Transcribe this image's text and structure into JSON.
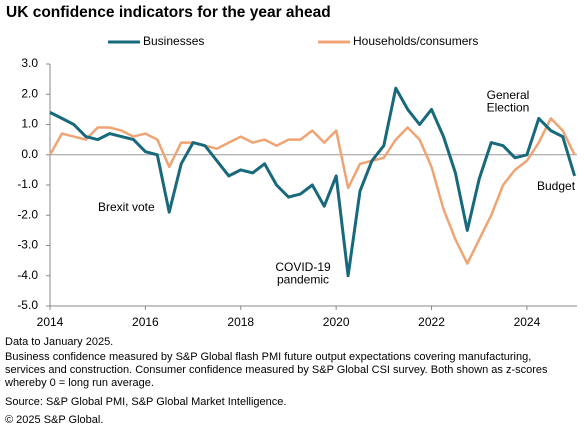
{
  "chart_data": {
    "type": "line",
    "title": "UK confidence indicators for the year ahead",
    "x": [
      2014,
      2014.25,
      2014.5,
      2014.75,
      2015,
      2015.25,
      2015.5,
      2015.75,
      2016,
      2016.25,
      2016.5,
      2016.75,
      2017,
      2017.25,
      2017.5,
      2017.75,
      2018,
      2018.25,
      2018.5,
      2018.75,
      2019,
      2019.25,
      2019.5,
      2019.75,
      2020,
      2020.25,
      2020.5,
      2020.75,
      2021,
      2021.25,
      2021.5,
      2021.75,
      2022,
      2022.25,
      2022.5,
      2022.75,
      2023,
      2023.25,
      2023.5,
      2023.75,
      2024,
      2024.25,
      2024.5,
      2024.75,
      2025
    ],
    "series": [
      {
        "name": "Businesses",
        "color": "#17697b",
        "values": [
          1.4,
          1.2,
          1.0,
          0.6,
          0.5,
          0.7,
          0.6,
          0.5,
          0.1,
          0.0,
          -1.9,
          -0.3,
          0.4,
          0.3,
          -0.2,
          -0.7,
          -0.5,
          -0.6,
          -0.3,
          -1.0,
          -1.4,
          -1.3,
          -1.0,
          -1.7,
          -0.7,
          -4.0,
          -1.2,
          -0.2,
          0.3,
          2.2,
          1.5,
          1.0,
          1.5,
          0.6,
          -0.6,
          -2.5,
          -0.8,
          0.4,
          0.3,
          -0.1,
          0.0,
          1.2,
          0.8,
          0.6,
          -0.7
        ]
      },
      {
        "name": "Households/consumers",
        "color": "#f0a474",
        "values": [
          0.0,
          0.7,
          0.6,
          0.5,
          0.9,
          0.9,
          0.8,
          0.6,
          0.7,
          0.5,
          -0.4,
          0.4,
          0.4,
          0.3,
          0.2,
          0.4,
          0.6,
          0.4,
          0.5,
          0.3,
          0.5,
          0.5,
          0.8,
          0.4,
          0.8,
          -1.1,
          -0.3,
          -0.2,
          -0.1,
          0.5,
          0.9,
          0.5,
          -0.4,
          -1.8,
          -2.8,
          -3.6,
          -2.8,
          -2.0,
          -1.0,
          -0.5,
          -0.2,
          0.4,
          1.2,
          0.8,
          0.0
        ]
      }
    ],
    "xlim": [
      2014,
      2025.05
    ],
    "xticks": [
      2014,
      2016,
      2018,
      2020,
      2022,
      2024
    ],
    "ylim": [
      -5,
      3
    ],
    "yticks": [
      {
        "value": 3,
        "label": "3.0"
      },
      {
        "value": 2,
        "label": "2.0"
      },
      {
        "value": 1,
        "label": "1.0"
      },
      {
        "value": 0,
        "label": "0.0"
      },
      {
        "value": -1,
        "label": "-1.0"
      },
      {
        "value": -2,
        "label": "-2.0"
      },
      {
        "value": -3,
        "label": "-3.0"
      },
      {
        "value": -4,
        "label": "-4.0"
      },
      {
        "value": -5,
        "label": "-5.0"
      }
    ],
    "zero_line": true,
    "legend": "top",
    "annotations": [
      {
        "lines": [
          "Brexit vote"
        ]
      },
      {
        "lines": [
          "COVID-19",
          "pandemic"
        ]
      },
      {
        "lines": [
          "General",
          "Election"
        ]
      },
      {
        "lines": [
          "Budget"
        ]
      }
    ],
    "notes": [
      "Data to January 2025.",
      "Business confidence measured by S&P Global flash PMI future output expectations covering manufacturing,",
      "services and construction. Consumer confidence measured by S&P Global CSI survey. Both shown as z-scores",
      "whereby 0 = long run average.",
      "Source: S&P Global  PMI, S&P Global Market Intelligence.",
      "© 2025 S&P Global."
    ]
  }
}
